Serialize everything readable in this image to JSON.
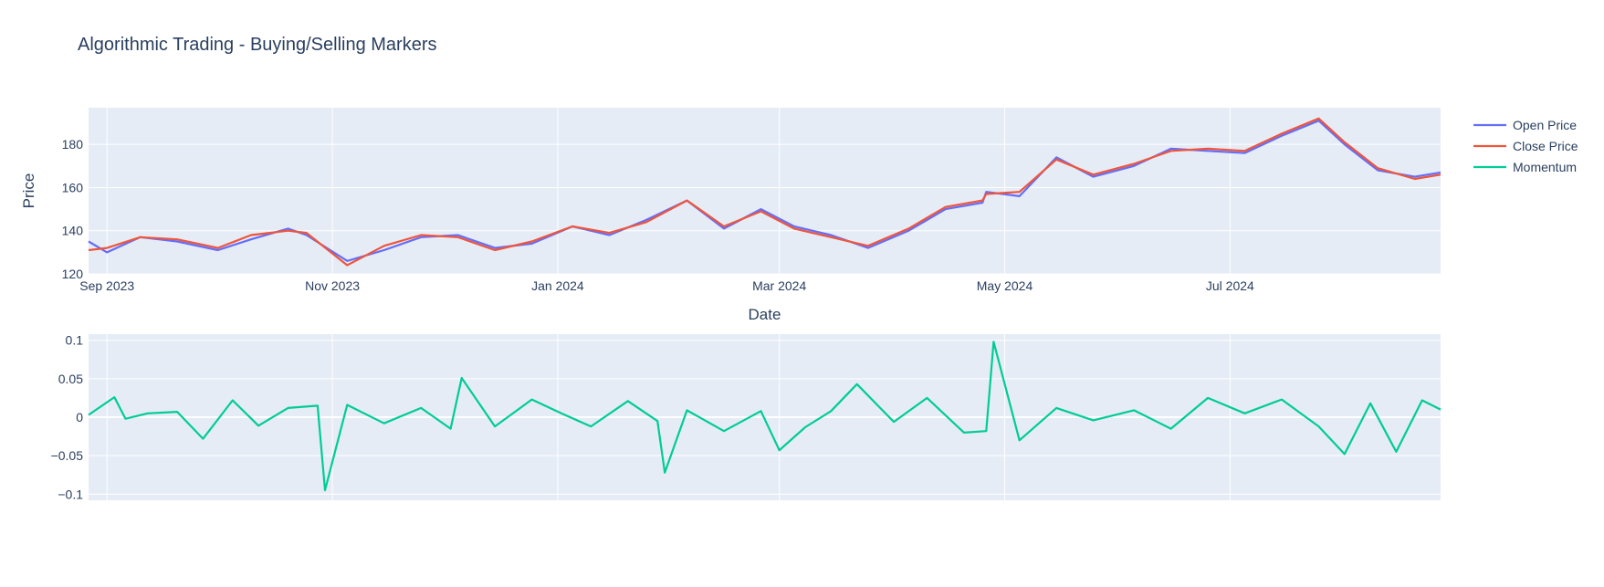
{
  "colors": {
    "open": "#636efa",
    "close": "#ef553b",
    "momentum": "#00cc96",
    "plot_bg": "#e5ecf6",
    "grid": "#ffffff",
    "text": "#2a3f5f"
  },
  "chart_data": {
    "type": "line",
    "title": "Algorithmic Trading - Buying/Selling Markers",
    "legend": {
      "placement": "top-right",
      "entries": [
        "Open Price",
        "Close Price",
        "Momentum"
      ]
    },
    "x_range": [
      "2023-08-27",
      "2024-08-27"
    ],
    "x_ticks": [
      {
        "date": "2023-09-01",
        "label": "Sep 2023"
      },
      {
        "date": "2023-11-01",
        "label": "Nov 2023"
      },
      {
        "date": "2024-01-01",
        "label": "Jan 2024"
      },
      {
        "date": "2024-03-01",
        "label": "Mar 2024"
      },
      {
        "date": "2024-05-01",
        "label": "May 2024"
      },
      {
        "date": "2024-07-01",
        "label": "Jul 2024"
      }
    ],
    "xlabel": "Date",
    "grid": true,
    "panels": [
      {
        "ylabel": "Price",
        "ylim": [
          120,
          197
        ],
        "y_ticks": [
          120,
          140,
          160,
          180
        ],
        "series": [
          {
            "name": "Open Price",
            "x": [
              "2023-08-27",
              "2023-09-01",
              "2023-09-10",
              "2023-09-20",
              "2023-10-01",
              "2023-10-10",
              "2023-10-20",
              "2023-10-25",
              "2023-11-05",
              "2023-11-15",
              "2023-11-25",
              "2023-12-05",
              "2023-12-15",
              "2023-12-25",
              "2024-01-05",
              "2024-01-15",
              "2024-01-25",
              "2024-02-05",
              "2024-02-15",
              "2024-02-25",
              "2024-03-05",
              "2024-03-15",
              "2024-03-25",
              "2024-04-05",
              "2024-04-15",
              "2024-04-25",
              "2024-04-26",
              "2024-05-05",
              "2024-05-15",
              "2024-05-25",
              "2024-06-05",
              "2024-06-15",
              "2024-06-25",
              "2024-07-05",
              "2024-07-15",
              "2024-07-25",
              "2024-08-01",
              "2024-08-10",
              "2024-08-20",
              "2024-08-27"
            ],
            "values": [
              135,
              130,
              137,
              135,
              131,
              136,
              141,
              138,
              126,
              131,
              137,
              138,
              132,
              134,
              142,
              138,
              145,
              154,
              141,
              150,
              142,
              138,
              132,
              140,
              150,
              153,
              158,
              156,
              174,
              165,
              170,
              178,
              177,
              176,
              184,
              191,
              180,
              168,
              165,
              167
            ]
          },
          {
            "name": "Close Price",
            "x": [
              "2023-08-27",
              "2023-09-01",
              "2023-09-10",
              "2023-09-20",
              "2023-10-01",
              "2023-10-10",
              "2023-10-20",
              "2023-10-25",
              "2023-11-05",
              "2023-11-15",
              "2023-11-25",
              "2023-12-05",
              "2023-12-15",
              "2023-12-25",
              "2024-01-05",
              "2024-01-15",
              "2024-01-25",
              "2024-02-05",
              "2024-02-15",
              "2024-02-25",
              "2024-03-05",
              "2024-03-15",
              "2024-03-25",
              "2024-04-05",
              "2024-04-15",
              "2024-04-25",
              "2024-04-26",
              "2024-05-05",
              "2024-05-15",
              "2024-05-25",
              "2024-06-05",
              "2024-06-15",
              "2024-06-25",
              "2024-07-05",
              "2024-07-15",
              "2024-07-25",
              "2024-08-01",
              "2024-08-10",
              "2024-08-20",
              "2024-08-27"
            ],
            "values": [
              131,
              132,
              137,
              136,
              132,
              138,
              140,
              139,
              124,
              133,
              138,
              137,
              131,
              135,
              142,
              139,
              144,
              154,
              142,
              149,
              141,
              137,
              133,
              141,
              151,
              154,
              157,
              158,
              173,
              166,
              171,
              177,
              178,
              177,
              185,
              192,
              181,
              169,
              164,
              166
            ]
          }
        ]
      },
      {
        "ylim": [
          -0.108,
          0.108
        ],
        "y_ticks": [
          {
            "value": 0.1,
            "label": "0.1"
          },
          {
            "value": 0.05,
            "label": "0.05"
          },
          {
            "value": 0,
            "label": "0"
          },
          {
            "value": -0.05,
            "label": "−0.05"
          },
          {
            "value": -0.1,
            "label": "−0.1"
          }
        ],
        "series": [
          {
            "name": "Momentum",
            "x": [
              "2023-08-27",
              "2023-09-03",
              "2023-09-06",
              "2023-09-12",
              "2023-09-20",
              "2023-09-27",
              "2023-10-05",
              "2023-10-12",
              "2023-10-20",
              "2023-10-28",
              "2023-10-30",
              "2023-11-05",
              "2023-11-15",
              "2023-11-25",
              "2023-12-03",
              "2023-12-06",
              "2023-12-15",
              "2023-12-25",
              "2024-01-02",
              "2024-01-10",
              "2024-01-20",
              "2024-01-28",
              "2024-01-30",
              "2024-02-05",
              "2024-02-15",
              "2024-02-25",
              "2024-03-01",
              "2024-03-08",
              "2024-03-15",
              "2024-03-22",
              "2024-04-01",
              "2024-04-10",
              "2024-04-20",
              "2024-04-26",
              "2024-04-28",
              "2024-05-05",
              "2024-05-15",
              "2024-05-25",
              "2024-06-05",
              "2024-06-15",
              "2024-06-25",
              "2024-07-05",
              "2024-07-15",
              "2024-07-25",
              "2024-08-01",
              "2024-08-08",
              "2024-08-15",
              "2024-08-22",
              "2024-08-27"
            ],
            "values": [
              0.003,
              0.026,
              -0.002,
              0.005,
              0.007,
              -0.028,
              0.022,
              -0.011,
              0.012,
              0.015,
              -0.095,
              0.016,
              -0.008,
              0.012,
              -0.015,
              0.051,
              -0.012,
              0.023,
              0.005,
              -0.012,
              0.021,
              -0.005,
              -0.072,
              0.009,
              -0.018,
              0.008,
              -0.043,
              -0.013,
              0.008,
              0.043,
              -0.006,
              0.025,
              -0.02,
              -0.018,
              0.098,
              -0.03,
              0.012,
              -0.004,
              0.009,
              -0.015,
              0.025,
              0.005,
              0.023,
              -0.012,
              -0.048,
              0.018,
              -0.045,
              0.022,
              0.01
            ]
          }
        ]
      }
    ]
  }
}
